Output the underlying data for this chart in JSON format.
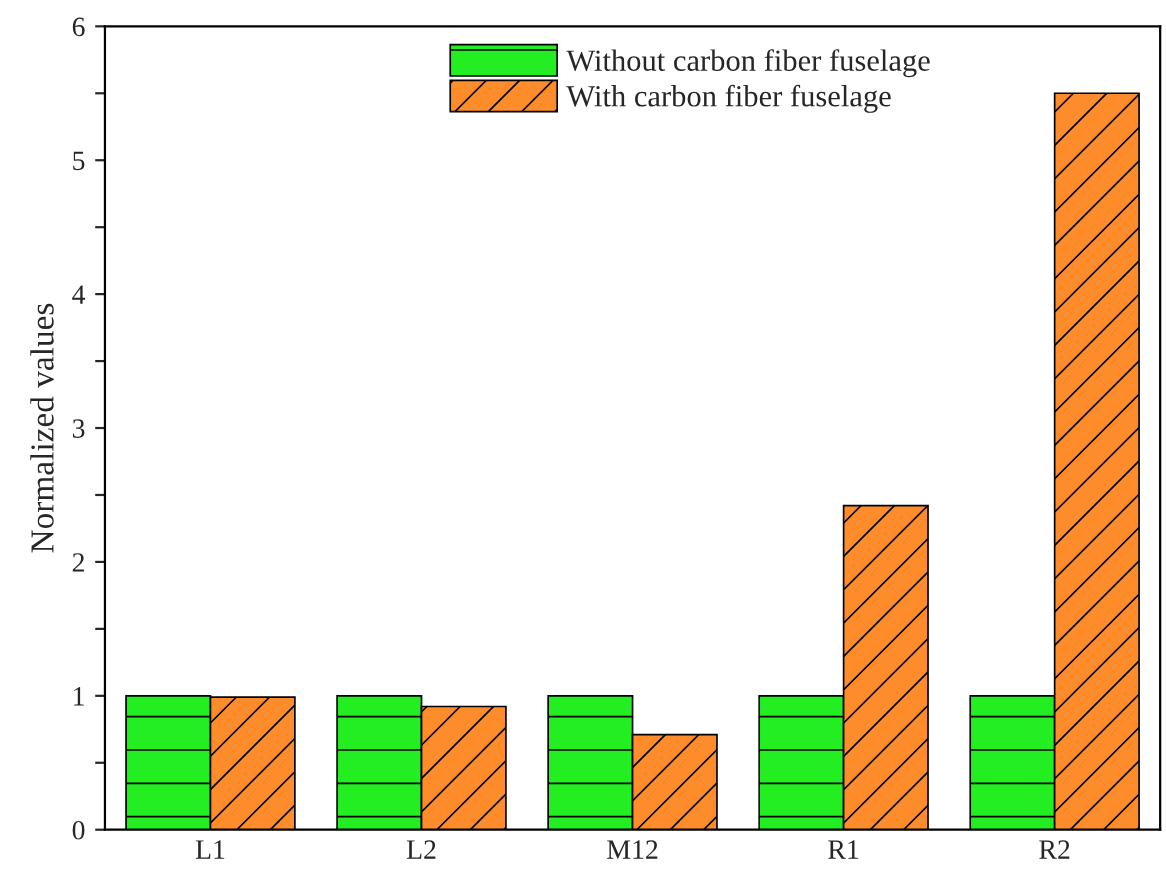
{
  "chart_data": {
    "type": "bar",
    "ylabel": "Normalized values",
    "categories": [
      "L1",
      "L2",
      "M12",
      "R1",
      "R2"
    ],
    "series": [
      {
        "name": "Without carbon fiber fuselage",
        "color": "#22ee22",
        "values": [
          1,
          1,
          1,
          1,
          1
        ]
      },
      {
        "name": "With carbon fiber fuselage",
        "color": "#ff8c2a",
        "values": [
          0.99,
          0.92,
          0.71,
          2.42,
          5.5
        ]
      }
    ],
    "ylim": [
      0,
      6
    ],
    "yticks": [
      0,
      {
        "value": 0.5,
        "label": null
      },
      1,
      {
        "value": 1.5,
        "label": null
      },
      2,
      {
        "value": 2.5,
        "label": null
      },
      3,
      {
        "value": 3.5,
        "label": null
      },
      4,
      {
        "value": 4.5,
        "label": null
      },
      5,
      {
        "value": 5.5,
        "label": null
      },
      6
    ],
    "grid": false,
    "legend": "top right"
  }
}
